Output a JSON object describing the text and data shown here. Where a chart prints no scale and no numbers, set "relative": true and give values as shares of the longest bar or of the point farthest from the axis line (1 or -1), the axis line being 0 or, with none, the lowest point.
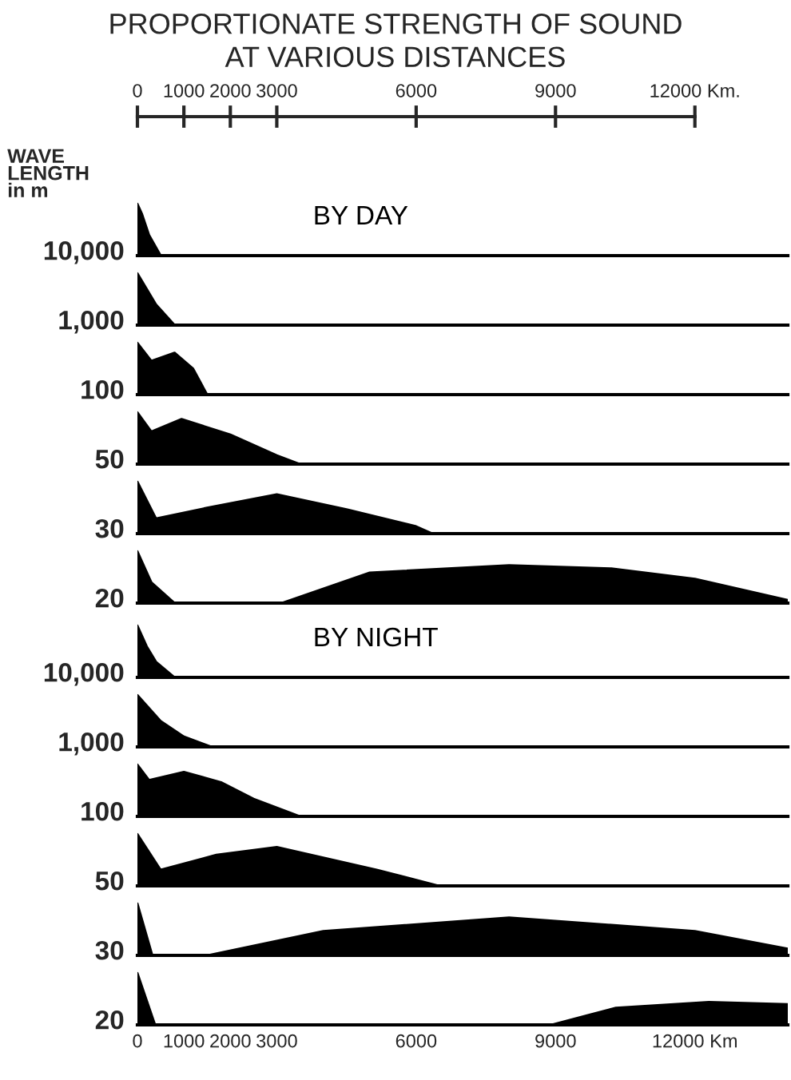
{
  "chart_data": [
    {
      "type": "area",
      "title": "PROPORTIONATE STRENGTH OF SOUND\nAT VARIOUS DISTANCES",
      "subtitle": "BY DAY",
      "annotations": [
        "WAVE\nLENGTH\nin m"
      ],
      "ylabel": "10,000",
      "relative": true,
      "color": "#000000",
      "xlim": [
        0,
        14000
      ],
      "x2lim": [
        0,
        12000
      ],
      "x2ticks": [
        0,
        1000,
        2000,
        3000,
        6000,
        9000,
        {
          "value": 12000,
          "label": "12000 Km."
        }
      ],
      "tick_labels": false,
      "x": [
        0,
        100,
        250,
        500,
        14000
      ],
      "values": [
        1,
        0.8,
        0.4,
        0,
        0
      ]
    },
    {
      "type": "area",
      "ylabel": "1,000",
      "relative": true,
      "color": "#000000",
      "xlim": [
        0,
        14000
      ],
      "tick_labels": false,
      "x": [
        0,
        200,
        400,
        800,
        14000
      ],
      "values": [
        1,
        0.7,
        0.4,
        0,
        0
      ]
    },
    {
      "type": "area",
      "ylabel": "100",
      "relative": true,
      "color": "#000000",
      "xlim": [
        0,
        14000
      ],
      "tick_labels": false,
      "x": [
        0,
        300,
        800,
        1200,
        1500,
        14000
      ],
      "values": [
        1,
        0.65,
        0.81,
        0.5,
        0,
        0
      ]
    },
    {
      "type": "area",
      "ylabel": "50",
      "relative": true,
      "color": "#000000",
      "xlim": [
        0,
        14000
      ],
      "tick_labels": false,
      "x": [
        0,
        300,
        950,
        2000,
        3000,
        3500,
        14000
      ],
      "values": [
        1,
        0.63,
        0.87,
        0.57,
        0.17,
        0,
        0
      ]
    },
    {
      "type": "area",
      "ylabel": "30",
      "relative": true,
      "color": "#000000",
      "xlim": [
        0,
        14000
      ],
      "tick_labels": false,
      "x": [
        0,
        400,
        1500,
        3000,
        4500,
        6000,
        6350,
        14000
      ],
      "values": [
        1,
        0.29,
        0.5,
        0.76,
        0.47,
        0.14,
        0,
        0
      ]
    },
    {
      "type": "area",
      "ylabel": "20",
      "relative": true,
      "color": "#000000",
      "xlim": [
        0,
        14000
      ],
      "tick_labels": false,
      "x": [
        0,
        300,
        800,
        3100,
        5000,
        8000,
        10200,
        12000,
        14000
      ],
      "values": [
        1,
        0.4,
        0,
        0,
        0.59,
        0.73,
        0.67,
        0.47,
        0.06
      ]
    },
    {
      "type": "area",
      "subtitle": "BY NIGHT",
      "ylabel": "10,000",
      "relative": true,
      "color": "#000000",
      "xlim": [
        0,
        14000
      ],
      "tick_labels": false,
      "x": [
        0,
        200,
        400,
        800,
        14000
      ],
      "values": [
        1,
        0.6,
        0.3,
        0,
        0
      ]
    },
    {
      "type": "area",
      "ylabel": "1,000",
      "relative": true,
      "color": "#000000",
      "xlim": [
        0,
        14000
      ],
      "tick_labels": false,
      "x": [
        0,
        500,
        1000,
        1600,
        14000
      ],
      "values": [
        1,
        0.5,
        0.2,
        0,
        0
      ]
    },
    {
      "type": "area",
      "ylabel": "100",
      "relative": true,
      "color": "#000000",
      "xlim": [
        0,
        14000
      ],
      "tick_labels": false,
      "x": [
        0,
        250,
        1000,
        1800,
        2500,
        3500,
        14000
      ],
      "values": [
        1,
        0.7,
        0.86,
        0.66,
        0.34,
        0,
        0
      ]
    },
    {
      "type": "area",
      "ylabel": "50",
      "relative": true,
      "color": "#000000",
      "xlim": [
        0,
        14000
      ],
      "tick_labels": false,
      "x": [
        0,
        500,
        1700,
        3000,
        5150,
        6500,
        14000
      ],
      "values": [
        1,
        0.31,
        0.6,
        0.75,
        0.31,
        0,
        0
      ]
    },
    {
      "type": "area",
      "ylabel": "30",
      "relative": true,
      "color": "#000000",
      "xlim": [
        0,
        14000
      ],
      "tick_labels": false,
      "x": [
        0,
        320,
        1500,
        4000,
        8000,
        12000,
        14000
      ],
      "values": [
        1,
        0,
        0,
        0.47,
        0.73,
        0.47,
        0.13
      ]
    },
    {
      "type": "area",
      "ylabel": "20",
      "relative": true,
      "color": "#000000",
      "xlim": [
        0,
        14000
      ],
      "xticks": [
        0,
        1000,
        2000,
        3000,
        6000,
        9000,
        {
          "value": 12000,
          "label": "12000 Km"
        }
      ],
      "tick_labels": "x",
      "x": [
        0,
        380,
        8900,
        10300,
        12300,
        14000
      ],
      "values": [
        1,
        0,
        0,
        0.33,
        0.44,
        0.4
      ]
    }
  ]
}
